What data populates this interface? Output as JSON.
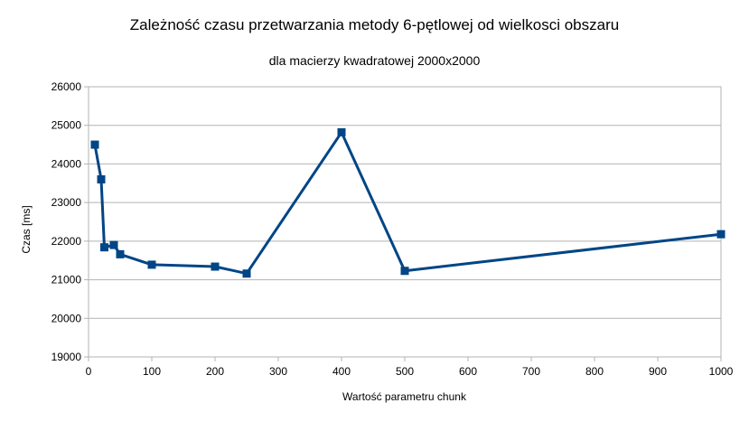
{
  "chart_data": {
    "type": "line",
    "title": "Zależność czasu przetwarzania metody 6-pętlowej od wielkosci obszaru",
    "subtitle": "dla macierzy kwadratowej 2000x2000",
    "xlabel": "Wartość parametru chunk",
    "ylabel": "Czas [ms]",
    "xlim": [
      0,
      1000
    ],
    "ylim": [
      19000,
      26000
    ],
    "xticks": [
      "0",
      "100",
      "200",
      "300",
      "400",
      "500",
      "600",
      "700",
      "800",
      "900",
      "1000"
    ],
    "yticks": [
      "19000",
      "20000",
      "21000",
      "22000",
      "23000",
      "24000",
      "25000",
      "26000"
    ],
    "grid": "horizontal",
    "series": [
      {
        "color": "#004586",
        "x": [
          10,
          20,
          25,
          40,
          50,
          100,
          200,
          250,
          400,
          500,
          1000
        ],
        "y": [
          24500,
          23600,
          21840,
          21900,
          21660,
          21390,
          21340,
          21160,
          24820,
          21230,
          22180
        ]
      }
    ]
  }
}
